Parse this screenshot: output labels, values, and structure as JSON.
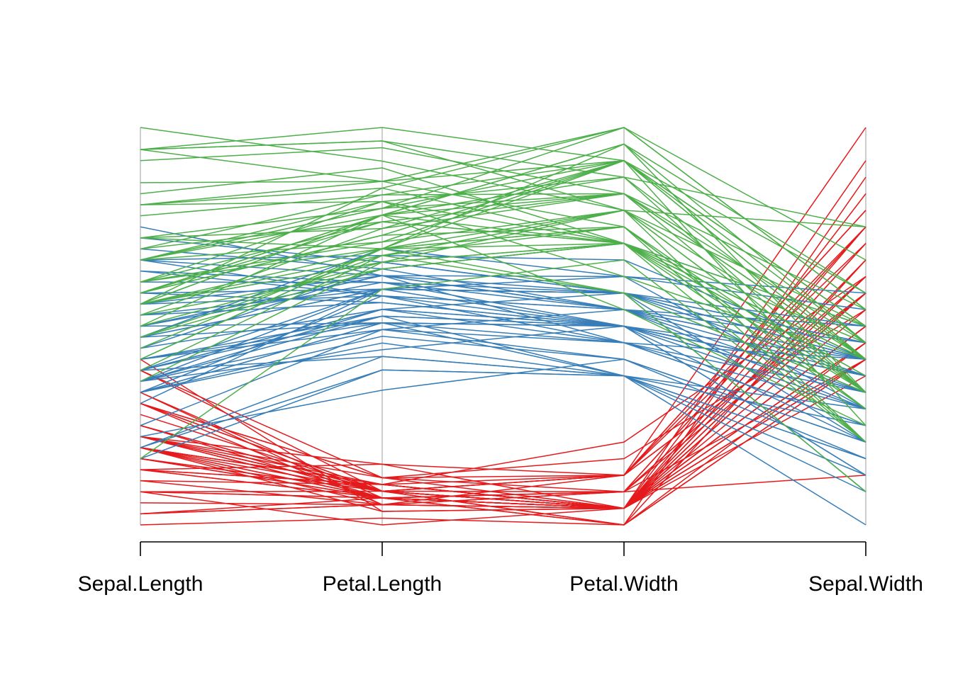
{
  "chart_data": {
    "type": "parallel_coordinates",
    "title": "",
    "dimensions": [
      "Sepal.Length",
      "Petal.Length",
      "Petal.Width",
      "Sepal.Width"
    ],
    "ranges": {
      "Sepal.Length": [
        4.3,
        7.9
      ],
      "Petal.Length": [
        1.0,
        6.9
      ],
      "Petal.Width": [
        0.1,
        2.5
      ],
      "Sepal.Width": [
        2.0,
        4.4
      ]
    },
    "normalized_per_axis": true,
    "axis_ticks_shown": false,
    "grid": false,
    "legend": "none",
    "colors": [
      "#E41A1C",
      "#377EB8",
      "#4DAF4A"
    ],
    "series": [
      {
        "color_index": 0,
        "rows": [
          [
            5.1,
            1.4,
            0.2,
            3.5
          ],
          [
            4.9,
            1.4,
            0.2,
            3.0
          ],
          [
            4.7,
            1.3,
            0.2,
            3.2
          ],
          [
            4.6,
            1.5,
            0.2,
            3.1
          ],
          [
            5.0,
            1.4,
            0.2,
            3.6
          ],
          [
            5.4,
            1.7,
            0.4,
            3.9
          ],
          [
            4.6,
            1.4,
            0.3,
            3.4
          ],
          [
            5.0,
            1.5,
            0.2,
            3.4
          ],
          [
            4.4,
            1.4,
            0.2,
            2.9
          ],
          [
            4.9,
            1.5,
            0.1,
            3.1
          ],
          [
            5.4,
            1.5,
            0.2,
            3.7
          ],
          [
            4.8,
            1.6,
            0.2,
            3.4
          ],
          [
            4.8,
            1.4,
            0.1,
            3.0
          ],
          [
            4.3,
            1.1,
            0.1,
            3.0
          ],
          [
            5.8,
            1.2,
            0.2,
            4.0
          ],
          [
            5.7,
            1.5,
            0.4,
            4.4
          ],
          [
            5.4,
            1.3,
            0.4,
            3.9
          ],
          [
            5.1,
            1.4,
            0.3,
            3.5
          ],
          [
            5.7,
            1.7,
            0.3,
            3.8
          ],
          [
            5.1,
            1.5,
            0.3,
            3.8
          ],
          [
            5.4,
            1.7,
            0.2,
            3.4
          ],
          [
            5.1,
            1.5,
            0.4,
            3.7
          ],
          [
            4.6,
            1.0,
            0.2,
            3.6
          ],
          [
            5.1,
            1.7,
            0.5,
            3.3
          ],
          [
            4.8,
            1.9,
            0.2,
            3.4
          ],
          [
            5.0,
            1.6,
            0.2,
            3.0
          ],
          [
            5.0,
            1.6,
            0.4,
            3.4
          ],
          [
            5.2,
            1.5,
            0.2,
            3.5
          ],
          [
            5.2,
            1.4,
            0.2,
            3.4
          ],
          [
            4.7,
            1.6,
            0.2,
            3.2
          ],
          [
            4.8,
            1.6,
            0.2,
            3.1
          ],
          [
            5.4,
            1.5,
            0.4,
            3.4
          ],
          [
            5.2,
            1.5,
            0.1,
            4.1
          ],
          [
            5.5,
            1.4,
            0.2,
            4.2
          ],
          [
            4.9,
            1.5,
            0.2,
            3.1
          ],
          [
            5.0,
            1.2,
            0.2,
            3.2
          ],
          [
            5.5,
            1.3,
            0.2,
            3.5
          ],
          [
            4.9,
            1.4,
            0.1,
            3.6
          ],
          [
            4.4,
            1.3,
            0.2,
            3.0
          ],
          [
            5.1,
            1.5,
            0.2,
            3.4
          ],
          [
            5.0,
            1.3,
            0.3,
            3.5
          ],
          [
            4.5,
            1.3,
            0.3,
            2.3
          ],
          [
            4.4,
            1.3,
            0.2,
            3.2
          ],
          [
            5.0,
            1.6,
            0.6,
            3.5
          ],
          [
            5.1,
            1.9,
            0.4,
            3.8
          ],
          [
            4.8,
            1.4,
            0.3,
            3.0
          ],
          [
            5.1,
            1.6,
            0.2,
            3.8
          ],
          [
            4.6,
            1.4,
            0.2,
            3.2
          ],
          [
            5.3,
            1.5,
            0.2,
            3.7
          ],
          [
            5.0,
            1.4,
            0.2,
            3.3
          ]
        ]
      },
      {
        "color_index": 1,
        "rows": [
          [
            7.0,
            4.7,
            1.4,
            3.2
          ],
          [
            6.4,
            4.5,
            1.5,
            3.2
          ],
          [
            6.9,
            4.9,
            1.5,
            3.1
          ],
          [
            5.5,
            4.0,
            1.3,
            2.3
          ],
          [
            6.5,
            4.6,
            1.5,
            2.8
          ],
          [
            5.7,
            4.5,
            1.3,
            2.8
          ],
          [
            6.3,
            4.7,
            1.6,
            3.3
          ],
          [
            4.9,
            3.3,
            1.0,
            2.4
          ],
          [
            6.6,
            4.6,
            1.3,
            2.9
          ],
          [
            5.2,
            3.9,
            1.4,
            2.7
          ],
          [
            5.0,
            3.5,
            1.0,
            2.0
          ],
          [
            5.9,
            4.2,
            1.5,
            3.0
          ],
          [
            6.0,
            4.0,
            1.0,
            2.2
          ],
          [
            6.1,
            4.7,
            1.4,
            2.9
          ],
          [
            5.6,
            3.6,
            1.3,
            2.9
          ],
          [
            6.7,
            4.4,
            1.4,
            3.1
          ],
          [
            5.6,
            4.5,
            1.5,
            3.0
          ],
          [
            5.8,
            4.1,
            1.0,
            2.7
          ],
          [
            6.2,
            4.5,
            1.5,
            2.2
          ],
          [
            5.6,
            3.9,
            1.1,
            2.5
          ],
          [
            5.9,
            4.8,
            1.8,
            3.2
          ],
          [
            6.1,
            4.0,
            1.3,
            2.8
          ],
          [
            6.3,
            4.9,
            1.5,
            2.5
          ],
          [
            6.1,
            4.7,
            1.2,
            2.8
          ],
          [
            6.4,
            4.3,
            1.3,
            2.9
          ],
          [
            6.6,
            4.4,
            1.4,
            3.0
          ],
          [
            6.8,
            4.8,
            1.4,
            2.8
          ],
          [
            6.7,
            5.0,
            1.7,
            3.0
          ],
          [
            6.0,
            4.5,
            1.5,
            2.9
          ],
          [
            5.7,
            3.5,
            1.0,
            2.6
          ],
          [
            5.5,
            3.8,
            1.1,
            2.4
          ],
          [
            5.5,
            3.7,
            1.0,
            2.4
          ],
          [
            5.8,
            3.9,
            1.2,
            2.7
          ],
          [
            6.0,
            5.1,
            1.6,
            2.7
          ],
          [
            5.4,
            4.5,
            1.5,
            3.0
          ],
          [
            6.0,
            4.5,
            1.6,
            3.4
          ],
          [
            6.7,
            4.7,
            1.5,
            3.1
          ],
          [
            6.3,
            4.4,
            1.3,
            2.3
          ],
          [
            5.6,
            4.1,
            1.3,
            3.0
          ],
          [
            5.5,
            4.0,
            1.3,
            2.5
          ],
          [
            5.5,
            4.4,
            1.2,
            2.6
          ],
          [
            6.1,
            4.6,
            1.4,
            3.0
          ],
          [
            5.8,
            4.0,
            1.2,
            2.6
          ],
          [
            5.0,
            3.3,
            1.0,
            2.3
          ],
          [
            5.6,
            4.2,
            1.3,
            2.7
          ],
          [
            5.7,
            4.2,
            1.2,
            3.0
          ],
          [
            5.7,
            4.2,
            1.3,
            2.9
          ],
          [
            6.2,
            4.3,
            1.3,
            2.9
          ],
          [
            5.1,
            3.0,
            1.1,
            2.5
          ],
          [
            5.7,
            4.1,
            1.3,
            2.8
          ]
        ]
      },
      {
        "color_index": 2,
        "rows": [
          [
            6.3,
            6.0,
            2.5,
            3.3
          ],
          [
            5.8,
            5.1,
            1.9,
            2.7
          ],
          [
            7.1,
            5.9,
            2.1,
            3.0
          ],
          [
            6.3,
            5.6,
            1.8,
            2.9
          ],
          [
            6.5,
            5.8,
            2.2,
            3.0
          ],
          [
            7.6,
            6.6,
            2.1,
            3.0
          ],
          [
            4.9,
            4.5,
            1.7,
            2.5
          ],
          [
            7.3,
            6.3,
            1.8,
            2.9
          ],
          [
            6.7,
            5.8,
            1.8,
            2.5
          ],
          [
            7.2,
            6.1,
            2.5,
            3.6
          ],
          [
            6.5,
            5.1,
            2.0,
            3.2
          ],
          [
            6.4,
            5.3,
            1.9,
            2.7
          ],
          [
            6.8,
            5.5,
            2.1,
            3.0
          ],
          [
            5.7,
            5.0,
            2.0,
            2.5
          ],
          [
            5.8,
            5.1,
            2.4,
            2.8
          ],
          [
            6.4,
            5.3,
            2.3,
            3.2
          ],
          [
            6.5,
            5.5,
            1.8,
            3.0
          ],
          [
            7.7,
            6.7,
            2.2,
            3.8
          ],
          [
            7.7,
            6.9,
            2.3,
            2.6
          ],
          [
            6.0,
            5.0,
            1.5,
            2.2
          ],
          [
            6.9,
            5.7,
            2.3,
            3.2
          ],
          [
            5.6,
            4.9,
            2.0,
            2.8
          ],
          [
            7.7,
            6.7,
            2.0,
            2.8
          ],
          [
            6.3,
            4.9,
            1.8,
            2.7
          ],
          [
            6.7,
            5.7,
            2.1,
            3.3
          ],
          [
            7.2,
            6.0,
            1.8,
            3.2
          ],
          [
            6.2,
            4.8,
            1.8,
            2.8
          ],
          [
            6.1,
            4.9,
            1.8,
            3.0
          ],
          [
            6.4,
            5.6,
            2.1,
            2.8
          ],
          [
            7.2,
            5.8,
            1.6,
            3.0
          ],
          [
            7.4,
            6.1,
            1.9,
            2.8
          ],
          [
            7.9,
            6.4,
            2.0,
            3.8
          ],
          [
            6.4,
            5.6,
            2.2,
            2.8
          ],
          [
            6.3,
            5.1,
            1.5,
            2.8
          ],
          [
            6.1,
            5.6,
            1.4,
            2.6
          ],
          [
            7.7,
            6.1,
            2.3,
            3.0
          ],
          [
            6.3,
            5.6,
            2.4,
            3.4
          ],
          [
            6.4,
            5.5,
            1.8,
            3.1
          ],
          [
            6.0,
            4.8,
            1.8,
            3.0
          ],
          [
            6.9,
            5.4,
            2.1,
            3.1
          ],
          [
            6.7,
            5.6,
            2.4,
            3.1
          ],
          [
            6.9,
            5.1,
            2.3,
            3.1
          ],
          [
            5.8,
            5.1,
            1.9,
            2.7
          ],
          [
            6.8,
            5.9,
            2.3,
            3.2
          ],
          [
            6.7,
            5.7,
            2.5,
            3.3
          ],
          [
            6.7,
            5.2,
            2.3,
            3.0
          ],
          [
            6.3,
            5.0,
            1.9,
            2.5
          ],
          [
            6.5,
            5.2,
            2.0,
            3.0
          ],
          [
            6.2,
            5.4,
            2.3,
            3.4
          ],
          [
            5.9,
            5.1,
            1.8,
            3.0
          ]
        ]
      }
    ]
  }
}
